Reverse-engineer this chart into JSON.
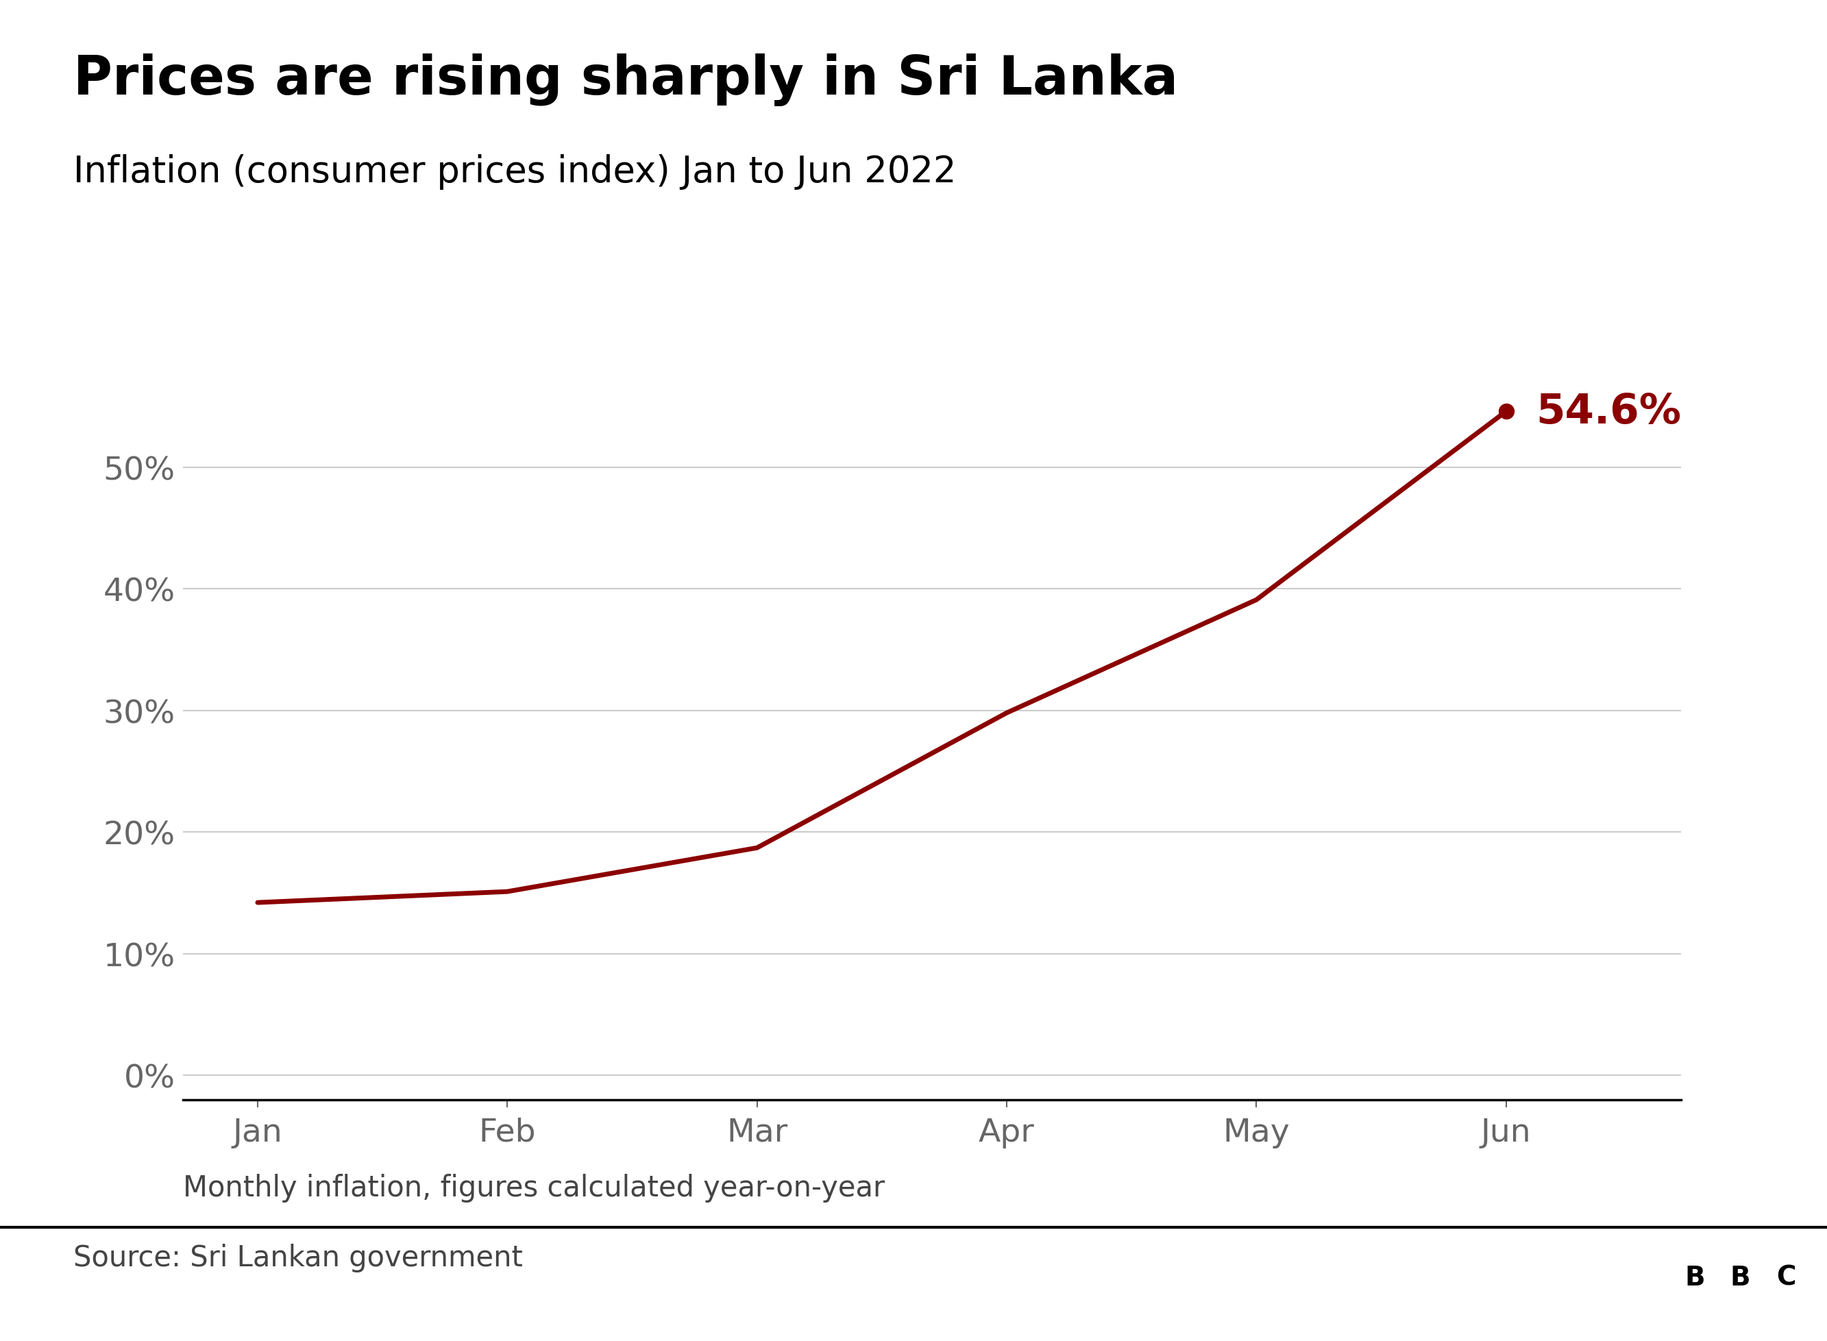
{
  "title": "Prices are rising sharply in Sri Lanka",
  "subtitle": "Inflation (consumer prices index) Jan to Jun 2022",
  "months": [
    "Jan",
    "Feb",
    "Mar",
    "Apr",
    "May",
    "Jun"
  ],
  "values": [
    14.2,
    15.1,
    18.7,
    29.8,
    39.1,
    54.6
  ],
  "line_color": "#8B0000",
  "dot_color": "#8B0000",
  "annotation_text": "54.6%",
  "annotation_color": "#8B0000",
  "yticks": [
    0,
    10,
    20,
    30,
    40,
    50
  ],
  "ylim": [
    -2,
    62
  ],
  "footnote": "Monthly inflation, figures calculated year-on-year",
  "source": "Source: Sri Lankan government",
  "background_color": "#ffffff",
  "grid_color": "#cccccc",
  "axis_color": "#000000",
  "tick_label_color": "#666666",
  "title_fontsize": 56,
  "subtitle_fontsize": 38,
  "tick_fontsize": 34,
  "annotation_fontsize": 44,
  "footnote_fontsize": 30,
  "source_fontsize": 30,
  "line_width": 5.0
}
